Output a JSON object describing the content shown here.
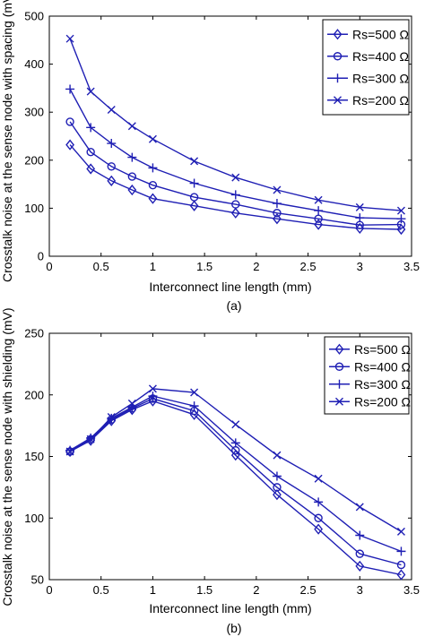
{
  "chart_data": [
    {
      "type": "line",
      "caption": "(a)",
      "xlabel": "Interconnect line length (mm)",
      "ylabel": "Crosstalk noise at the sense node with spacing (mV)",
      "xlim": [
        0,
        3.5
      ],
      "ylim": [
        0,
        500
      ],
      "xticks": [
        "0",
        "0.5",
        "1",
        "1.5",
        "2",
        "2.5",
        "3",
        "3.5"
      ],
      "yticks": [
        "0",
        "100",
        "200",
        "300",
        "400",
        "500"
      ],
      "legend_position": "top-right",
      "x": [
        0.2,
        0.4,
        0.6,
        0.8,
        1.0,
        1.4,
        1.8,
        2.2,
        2.6,
        3.0,
        3.4
      ],
      "series": [
        {
          "name": "Rs=500 Ω",
          "marker": "diamond",
          "values": [
            232,
            182,
            157,
            138,
            120,
            105,
            90,
            78,
            66,
            58,
            56
          ]
        },
        {
          "name": "Rs=400 Ω",
          "marker": "circle",
          "values": [
            280,
            217,
            187,
            166,
            148,
            123,
            108,
            90,
            78,
            65,
            66
          ]
        },
        {
          "name": "Rs=300 Ω",
          "marker": "plus",
          "values": [
            348,
            268,
            235,
            206,
            184,
            152,
            128,
            110,
            95,
            80,
            78
          ]
        },
        {
          "name": "Rs=200 Ω",
          "marker": "x",
          "values": [
            453,
            343,
            305,
            271,
            244,
            198,
            164,
            138,
            117,
            102,
            95
          ]
        }
      ],
      "color": "#1f1fb4"
    },
    {
      "type": "line",
      "caption": "(b)",
      "xlabel": "Interconnect line length (mm)",
      "ylabel": "Crosstalk noise at the sense node with shielding (mV)",
      "xlim": [
        0,
        3.5
      ],
      "ylim": [
        50,
        250
      ],
      "xticks": [
        "0",
        "0.5",
        "1",
        "1.5",
        "2",
        "2.5",
        "3",
        "3.5"
      ],
      "yticks": [
        "50",
        "100",
        "150",
        "200",
        "250"
      ],
      "legend_position": "top-right",
      "x": [
        0.2,
        0.4,
        0.6,
        0.8,
        1.0,
        1.4,
        1.8,
        2.2,
        2.6,
        3.0,
        3.4
      ],
      "series": [
        {
          "name": "Rs=500 Ω",
          "marker": "diamond",
          "values": [
            154,
            163,
            179,
            188,
            195,
            184,
            151,
            119,
            91,
            61,
            54
          ]
        },
        {
          "name": "Rs=400 Ω",
          "marker": "circle",
          "values": [
            154,
            164,
            180,
            189,
            197,
            187,
            155,
            125,
            100,
            71,
            62
          ]
        },
        {
          "name": "Rs=300 Ω",
          "marker": "plus",
          "values": [
            155,
            165,
            181,
            190,
            199,
            191,
            161,
            134,
            113,
            86,
            73
          ]
        },
        {
          "name": "Rs=200 Ω",
          "marker": "x",
          "values": [
            154,
            164,
            182,
            193,
            205,
            202,
            176,
            151,
            132,
            109,
            89
          ]
        }
      ],
      "color": "#1f1fb4"
    }
  ]
}
